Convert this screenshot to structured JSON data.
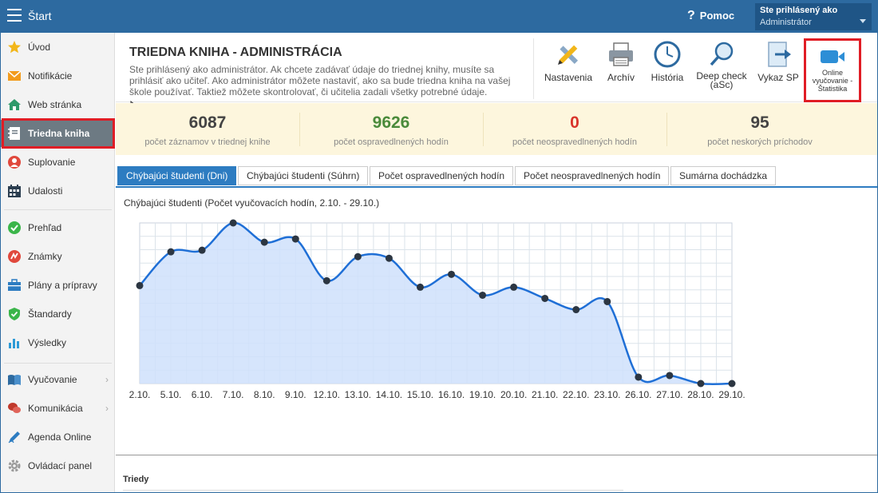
{
  "topbar": {
    "title": "Štart",
    "help_label": "Pomoc",
    "help_glyph": "?",
    "user_line1": "Ste prihlásený ako",
    "user_line2": "Administrátor"
  },
  "sidebar": {
    "items": [
      {
        "label": "Úvod",
        "icon": "star-icon",
        "color": "#f2b619"
      },
      {
        "label": "Notifikácie",
        "icon": "envelope-icon",
        "color": "#f29b1d"
      },
      {
        "label": "Web stránka",
        "icon": "home-icon",
        "color": "#2e9a6a"
      },
      {
        "label": "Triedna kniha",
        "icon": "notebook-icon",
        "color": "#ffffff"
      },
      {
        "label": "Suplovanie",
        "icon": "person-icon",
        "color": "#e0483c"
      },
      {
        "label": "Udalosti",
        "icon": "calendar-icon",
        "color": "#2b3e50"
      },
      {
        "label": "Prehľad",
        "icon": "check-circle-icon",
        "color": "#3bb54a"
      },
      {
        "label": "Známky",
        "icon": "grade-icon",
        "color": "#e0483c"
      },
      {
        "label": "Plány a prípravy",
        "icon": "briefcase-icon",
        "color": "#2d7cc1"
      },
      {
        "label": "Štandardy",
        "icon": "shield-icon",
        "color": "#3bb54a"
      },
      {
        "label": "Výsledky",
        "icon": "bar-chart-icon",
        "color": "#2d9ad6"
      },
      {
        "label": "Vyučovanie",
        "icon": "book-icon",
        "color": "#2d6aa0"
      },
      {
        "label": "Komunikácia",
        "icon": "chat-icon",
        "color": "#c0392b"
      },
      {
        "label": "Agenda Online",
        "icon": "pen-icon",
        "color": "#2d7cc1"
      },
      {
        "label": "Ovládací panel",
        "icon": "gear-icon",
        "color": "#999999"
      }
    ]
  },
  "header": {
    "title": "TRIEDNA KNIHA - ADMINISTRÁCIA",
    "description": "Ste prihlásený ako administrátor. Ak chcete zadávať údaje do triednej knihy, musíte sa prihlásiť ako učiteľ. Ako administrátor môžete nastaviť, ako sa bude triedna kniha na vašej škole používať. Taktiež môžete skontrolovať, či učitelia zadali všetky potrebné údaje."
  },
  "toolbar": {
    "nastavenia": "Nastavenia",
    "archiv": "Archív",
    "historia": "História",
    "deep_check_1": "Deep check",
    "deep_check_2": "(aSc)",
    "vykaz_sp": "Vykaz SP",
    "online_1": "Online",
    "online_2": "vyučovanie -",
    "online_3": "Štatistika"
  },
  "stats": [
    {
      "value": "6087",
      "caption": "počet záznamov v triednej knihe",
      "color": "#444444"
    },
    {
      "value": "9626",
      "caption": "počet ospravedlnených hodín",
      "color": "#4a8a3a"
    },
    {
      "value": "0",
      "caption": "počet neospravedlnených hodín",
      "color": "#d9342b"
    },
    {
      "value": "95",
      "caption": "počet neskorých príchodov",
      "color": "#444444"
    }
  ],
  "tabs": [
    "Chýbajúci študenti (Dni)",
    "Chýbajúci študenti (Súhrn)",
    "Počet ospravedlnených hodín",
    "Počet neospravedlnených hodín",
    "Sumárna dochádzka"
  ],
  "chart_data": {
    "type": "area",
    "title": "Chýbajúci študenti (Počet vyučovacích hodín, 2.10. - 29.10.)",
    "x": [
      "2.10.",
      "5.10.",
      "6.10.",
      "7.10.",
      "8.10.",
      "9.10.",
      "12.10.",
      "13.10.",
      "14.10.",
      "15.10.",
      "16.10.",
      "19.10.",
      "20.10.",
      "21.10.",
      "22.10.",
      "23.10.",
      "26.10.",
      "27.10.",
      "28.10.",
      "29.10."
    ],
    "values": [
      0.61,
      0.82,
      0.83,
      1.0,
      0.88,
      0.9,
      0.64,
      0.79,
      0.78,
      0.6,
      0.68,
      0.55,
      0.6,
      0.53,
      0.46,
      0.51,
      0.04,
      0.05,
      0.0,
      0.0
    ],
    "ylim": [
      0,
      1
    ],
    "line_color": "#1f6fd6",
    "fill_color": "#cfe0fb",
    "grid": true
  },
  "footer": {
    "section_label": "Triedy"
  }
}
